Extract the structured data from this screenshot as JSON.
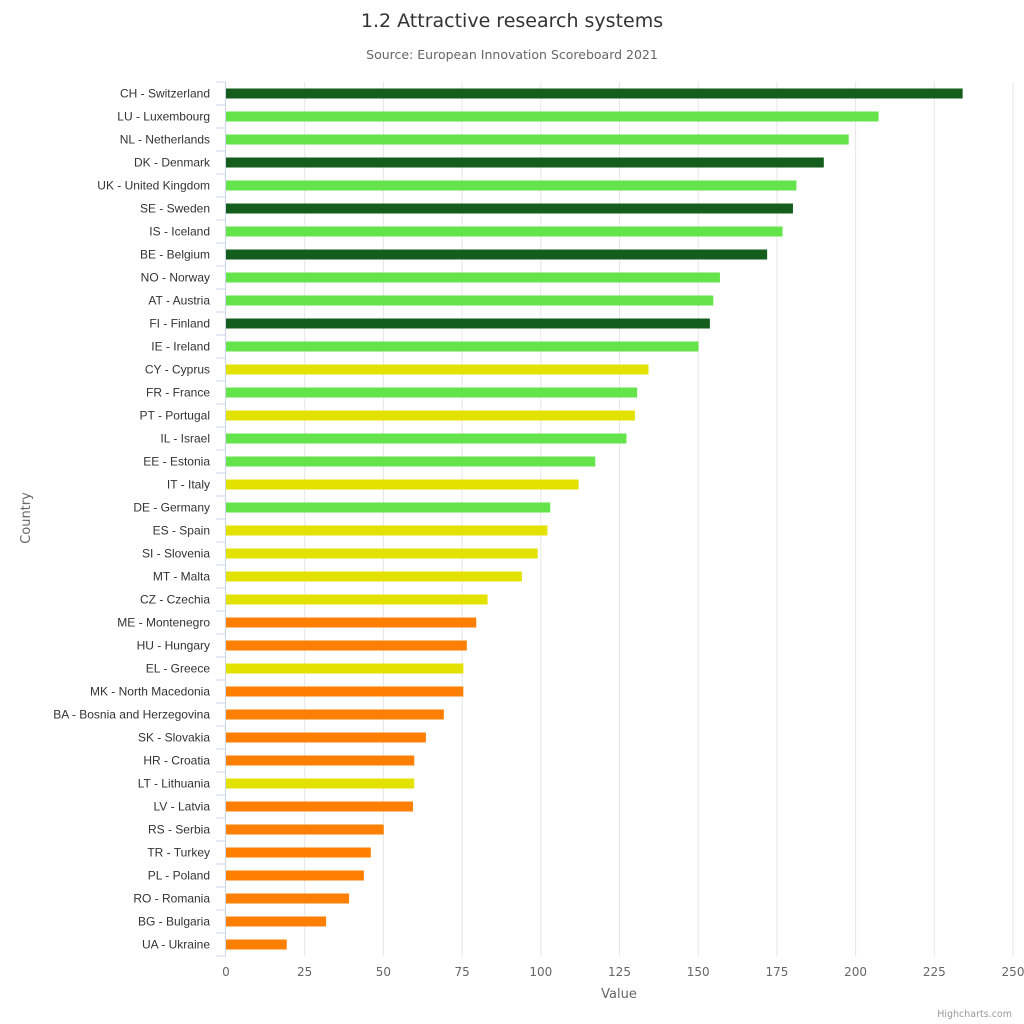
{
  "chart_data": {
    "type": "bar",
    "orientation": "horizontal",
    "title": "1.2 Attractive research systems",
    "subtitle": "Source: European Innovation Scoreboard 2021",
    "xlabel": "Country",
    "ylabel": "Value",
    "ylim": [
      0,
      250
    ],
    "ticks": [
      0,
      25,
      50,
      75,
      100,
      125,
      150,
      175,
      200,
      225,
      250
    ],
    "grid": true,
    "credits": "Highcharts.com",
    "group_colors": {
      "dark_green": "#135e1c",
      "light_green": "#64e34b",
      "yellow": "#e3e100",
      "orange": "#ff7f00"
    },
    "categories": [
      "CH - Switzerland",
      "LU - Luxembourg",
      "NL - Netherlands",
      "DK - Denmark",
      "UK - United Kingdom",
      "SE - Sweden",
      "IS - Iceland",
      "BE - Belgium",
      "NO - Norway",
      "AT - Austria",
      "FI - Finland",
      "IE - Ireland",
      "CY - Cyprus",
      "FR - France",
      "PT - Portugal",
      "IL - Israel",
      "EE - Estonia",
      "IT - Italy",
      "DE - Germany",
      "ES - Spain",
      "SI - Slovenia",
      "MT - Malta",
      "CZ - Czechia",
      "ME - Montenegro",
      "HU - Hungary",
      "EL - Greece",
      "MK - North Macedonia",
      "BA - Bosnia and Herzegovina",
      "SK - Slovakia",
      "HR - Croatia",
      "LT - Lithuania",
      "LV - Latvia",
      "RS - Serbia",
      "TR - Turkey",
      "PL - Poland",
      "RO - Romania",
      "BG - Bulgaria",
      "UA - Ukraine"
    ],
    "values": [
      234.0,
      207.3,
      197.8,
      189.9,
      181.2,
      180.1,
      176.8,
      171.9,
      156.9,
      154.8,
      153.7,
      150.1,
      134.2,
      130.6,
      129.9,
      127.2,
      117.3,
      112.0,
      103.0,
      102.1,
      99.0,
      94.0,
      83.1,
      79.5,
      76.5,
      75.4,
      75.4,
      69.2,
      63.5,
      59.8,
      59.8,
      59.4,
      50.1,
      46.0,
      43.8,
      39.1,
      31.8,
      19.3
    ],
    "groups": [
      "dark_green",
      "light_green",
      "light_green",
      "dark_green",
      "light_green",
      "dark_green",
      "light_green",
      "dark_green",
      "light_green",
      "light_green",
      "dark_green",
      "light_green",
      "yellow",
      "light_green",
      "yellow",
      "light_green",
      "light_green",
      "yellow",
      "light_green",
      "yellow",
      "yellow",
      "yellow",
      "yellow",
      "orange",
      "orange",
      "yellow",
      "orange",
      "orange",
      "orange",
      "orange",
      "yellow",
      "orange",
      "orange",
      "orange",
      "orange",
      "orange",
      "orange",
      "orange"
    ]
  }
}
